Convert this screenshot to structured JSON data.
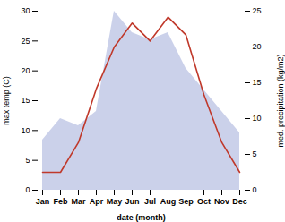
{
  "chart_data": {
    "type": "line",
    "categories": [
      "Jan",
      "Feb",
      "Mar",
      "Apr",
      "May",
      "Jun",
      "Jul",
      "Aug",
      "Sep",
      "Oct",
      "Nov",
      "Dec"
    ],
    "xlabel": "date (month)",
    "ylabel": "max temp (C)",
    "y2label": "med. precipitation (kg/m2)",
    "series": [
      {
        "type": "area",
        "color": "#c5cce8",
        "axis": "y2",
        "values": [
          7,
          10,
          9,
          11,
          25,
          22,
          21,
          22,
          17,
          14,
          11,
          8
        ]
      },
      {
        "type": "line",
        "color": "#c0392b",
        "values": [
          3,
          3,
          8,
          17,
          24,
          28,
          25,
          29,
          26,
          16,
          8,
          3
        ]
      }
    ],
    "ylim": [
      0,
      30
    ],
    "yticks": [
      0,
      5,
      10,
      15,
      20,
      25,
      30
    ],
    "y2lim": [
      0,
      25
    ],
    "y2ticks": [
      0,
      5,
      10,
      15,
      20,
      25
    ],
    "grid": false
  }
}
